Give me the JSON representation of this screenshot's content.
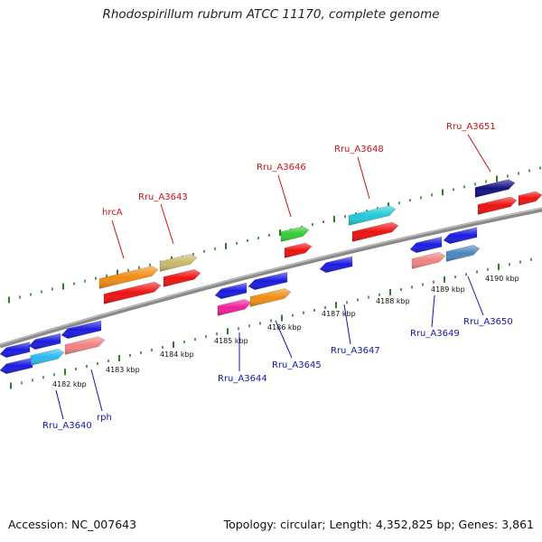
{
  "title": "Rhodospirillum rubrum ATCC 11170, complete genome",
  "footer": {
    "accession": "Accession: NC_007643",
    "topology": "Topology: circular; Length: 4,352,825 bp; Genes: 3,861"
  },
  "colors": {
    "backbone": "#8a8a8a",
    "tick": "#2d7d2d",
    "top_label": "#cc1111",
    "bottom_label": "#1515aa"
  },
  "kbp_labels": [
    "4182 kbp",
    "4183 kbp",
    "4184 kbp",
    "4185 kbp",
    "4186 kbp",
    "4187 kbp",
    "4188 kbp",
    "4189 kbp",
    "4190 kbp"
  ],
  "gene_labels_top": [
    "hrcA",
    "Rru_A3643",
    "Rru_A3646",
    "Rru_A3648",
    "Rru_A3651"
  ],
  "gene_labels_bottom": [
    "Rru_A3640",
    "rph",
    "Rru_A3644",
    "Rru_A3645",
    "Rru_A3647",
    "Rru_A3649",
    "Rru_A3650"
  ]
}
